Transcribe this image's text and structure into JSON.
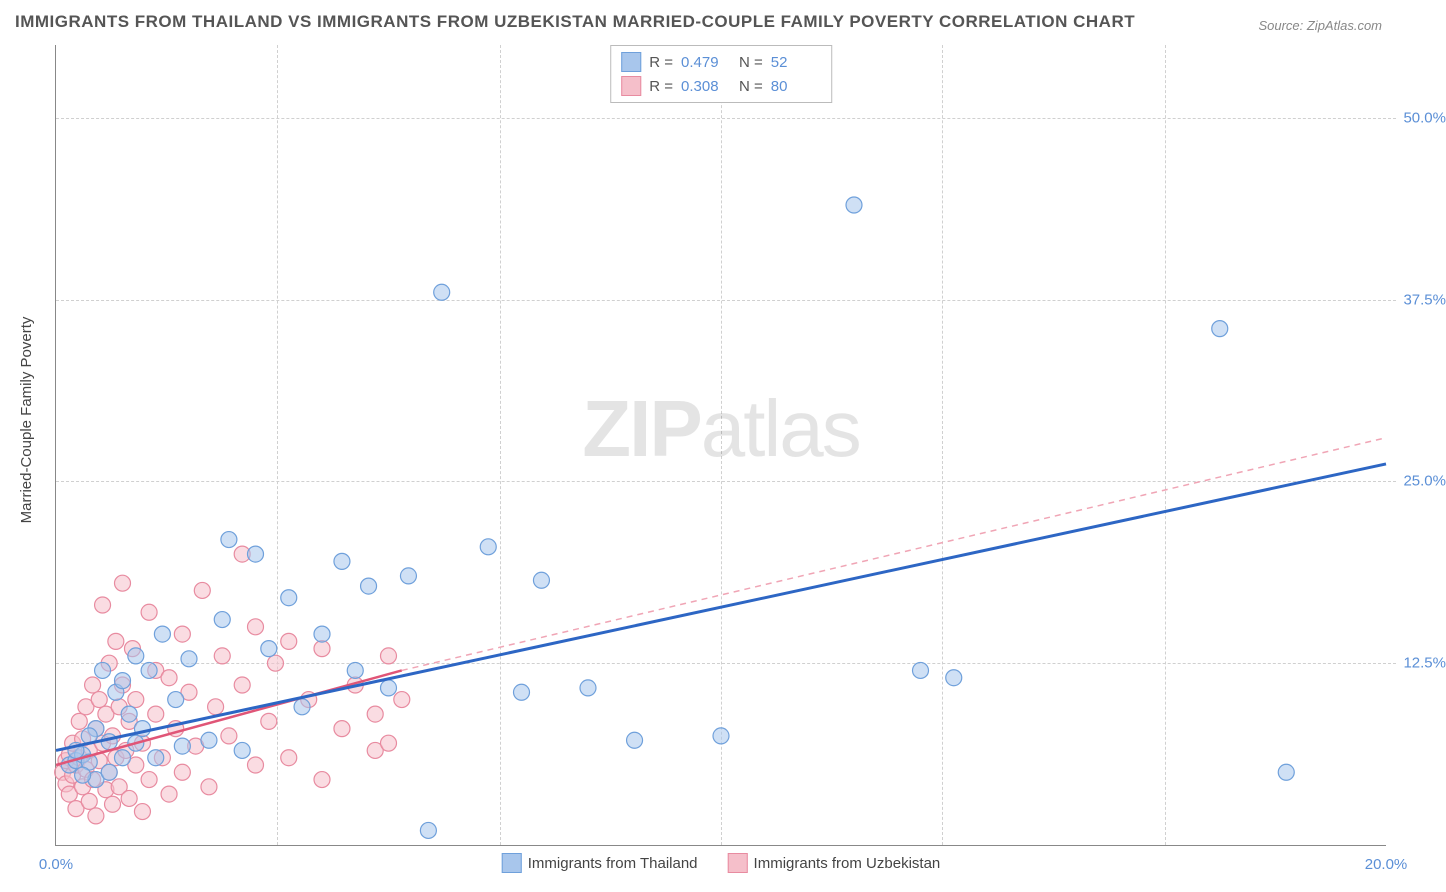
{
  "title": "IMMIGRANTS FROM THAILAND VS IMMIGRANTS FROM UZBEKISTAN MARRIED-COUPLE FAMILY POVERTY CORRELATION CHART",
  "source": "Source: ZipAtlas.com",
  "yaxis_label": "Married-Couple Family Poverty",
  "watermark_bold": "ZIP",
  "watermark_rest": "atlas",
  "chart": {
    "type": "scatter",
    "xlim": [
      0,
      20
    ],
    "ylim": [
      0,
      55
    ],
    "xunit": "%",
    "yunit": "%",
    "xticks": [
      0,
      20
    ],
    "xtick_labels": [
      "0.0%",
      "20.0%"
    ],
    "yticks": [
      12.5,
      25.0,
      37.5,
      50.0
    ],
    "ytick_labels": [
      "12.5%",
      "25.0%",
      "37.5%",
      "50.0%"
    ],
    "vgrid": [
      3.33,
      6.67,
      10.0,
      13.33,
      16.67
    ],
    "grid_color": "#d0d0d0",
    "background_color": "#ffffff",
    "series": [
      {
        "id": "thailand",
        "label": "Immigrants from Thailand",
        "color_fill": "#a8c6ec",
        "color_stroke": "#6fa0db",
        "r_value": "0.479",
        "n_value": "52",
        "marker_radius": 8,
        "trend": {
          "x1": 0,
          "y1": 6.5,
          "x2": 20,
          "y2": 26.2,
          "color": "#2d66c4",
          "width": 3,
          "dash": "none"
        },
        "points": [
          [
            0.2,
            5.5
          ],
          [
            0.3,
            5.8
          ],
          [
            0.4,
            6.2
          ],
          [
            0.5,
            5.7
          ],
          [
            0.6,
            8.0
          ],
          [
            0.6,
            4.5
          ],
          [
            0.7,
            12.0
          ],
          [
            0.8,
            7.1
          ],
          [
            0.9,
            10.5
          ],
          [
            1.0,
            6.0
          ],
          [
            1.0,
            11.3
          ],
          [
            1.1,
            9.0
          ],
          [
            1.2,
            13.0
          ],
          [
            1.3,
            8.0
          ],
          [
            1.4,
            12.0
          ],
          [
            1.5,
            6.0
          ],
          [
            1.6,
            14.5
          ],
          [
            1.8,
            10.0
          ],
          [
            1.9,
            6.8
          ],
          [
            2.0,
            12.8
          ],
          [
            2.3,
            7.2
          ],
          [
            2.5,
            15.5
          ],
          [
            2.6,
            21.0
          ],
          [
            2.8,
            6.5
          ],
          [
            3.0,
            20.0
          ],
          [
            3.2,
            13.5
          ],
          [
            3.5,
            17.0
          ],
          [
            3.7,
            9.5
          ],
          [
            4.0,
            14.5
          ],
          [
            4.3,
            19.5
          ],
          [
            4.5,
            12.0
          ],
          [
            4.7,
            17.8
          ],
          [
            5.0,
            10.8
          ],
          [
            5.3,
            18.5
          ],
          [
            5.6,
            1.0
          ],
          [
            5.8,
            38.0
          ],
          [
            6.5,
            20.5
          ],
          [
            7.0,
            10.5
          ],
          [
            7.3,
            18.2
          ],
          [
            8.0,
            10.8
          ],
          [
            8.7,
            7.2
          ],
          [
            10.0,
            7.5
          ],
          [
            12.0,
            44.0
          ],
          [
            13.0,
            12.0
          ],
          [
            13.5,
            11.5
          ],
          [
            17.5,
            35.5
          ],
          [
            18.5,
            5.0
          ],
          [
            0.3,
            6.5
          ],
          [
            0.4,
            4.8
          ],
          [
            0.5,
            7.5
          ],
          [
            0.8,
            5.0
          ],
          [
            1.2,
            7.0
          ]
        ]
      },
      {
        "id": "uzbekistan",
        "label": "Immigrants from Uzbekistan",
        "color_fill": "#f5bfca",
        "color_stroke": "#e88ba0",
        "r_value": "0.308",
        "n_value": "80",
        "marker_radius": 8,
        "trend_solid": {
          "x1": 0,
          "y1": 5.5,
          "x2": 5.2,
          "y2": 12.0,
          "color": "#e05577",
          "width": 2.5,
          "dash": "none"
        },
        "trend_dash": {
          "x1": 5.2,
          "y1": 12.0,
          "x2": 20,
          "y2": 28.0,
          "color": "#f0a5b5",
          "width": 1.5,
          "dash": "6,5"
        },
        "points": [
          [
            0.1,
            5.0
          ],
          [
            0.15,
            5.8
          ],
          [
            0.15,
            4.2
          ],
          [
            0.2,
            6.2
          ],
          [
            0.2,
            3.5
          ],
          [
            0.25,
            7.0
          ],
          [
            0.25,
            4.8
          ],
          [
            0.3,
            5.5
          ],
          [
            0.3,
            2.5
          ],
          [
            0.35,
            8.5
          ],
          [
            0.35,
            6.0
          ],
          [
            0.4,
            4.0
          ],
          [
            0.4,
            7.3
          ],
          [
            0.45,
            9.5
          ],
          [
            0.45,
            5.2
          ],
          [
            0.5,
            3.0
          ],
          [
            0.5,
            6.5
          ],
          [
            0.55,
            11.0
          ],
          [
            0.55,
            4.5
          ],
          [
            0.6,
            8.0
          ],
          [
            0.6,
            2.0
          ],
          [
            0.65,
            10.0
          ],
          [
            0.65,
            5.8
          ],
          [
            0.7,
            16.5
          ],
          [
            0.7,
            7.0
          ],
          [
            0.75,
            3.8
          ],
          [
            0.75,
            9.0
          ],
          [
            0.8,
            12.5
          ],
          [
            0.8,
            5.0
          ],
          [
            0.85,
            7.5
          ],
          [
            0.85,
            2.8
          ],
          [
            0.9,
            14.0
          ],
          [
            0.9,
            6.0
          ],
          [
            0.95,
            9.5
          ],
          [
            0.95,
            4.0
          ],
          [
            1.0,
            11.0
          ],
          [
            1.0,
            18.0
          ],
          [
            1.05,
            6.5
          ],
          [
            1.1,
            3.2
          ],
          [
            1.1,
            8.5
          ],
          [
            1.15,
            13.5
          ],
          [
            1.2,
            5.5
          ],
          [
            1.2,
            10.0
          ],
          [
            1.3,
            7.0
          ],
          [
            1.3,
            2.3
          ],
          [
            1.4,
            16.0
          ],
          [
            1.4,
            4.5
          ],
          [
            1.5,
            9.0
          ],
          [
            1.5,
            12.0
          ],
          [
            1.6,
            6.0
          ],
          [
            1.7,
            3.5
          ],
          [
            1.7,
            11.5
          ],
          [
            1.8,
            8.0
          ],
          [
            1.9,
            5.0
          ],
          [
            1.9,
            14.5
          ],
          [
            2.0,
            10.5
          ],
          [
            2.1,
            6.8
          ],
          [
            2.2,
            17.5
          ],
          [
            2.3,
            4.0
          ],
          [
            2.4,
            9.5
          ],
          [
            2.5,
            13.0
          ],
          [
            2.6,
            7.5
          ],
          [
            2.8,
            11.0
          ],
          [
            2.8,
            20.0
          ],
          [
            3.0,
            5.5
          ],
          [
            3.0,
            15.0
          ],
          [
            3.2,
            8.5
          ],
          [
            3.3,
            12.5
          ],
          [
            3.5,
            6.0
          ],
          [
            3.5,
            14.0
          ],
          [
            3.8,
            10.0
          ],
          [
            4.0,
            4.5
          ],
          [
            4.0,
            13.5
          ],
          [
            4.3,
            8.0
          ],
          [
            4.5,
            11.0
          ],
          [
            4.8,
            6.5
          ],
          [
            4.8,
            9.0
          ],
          [
            5.0,
            13.0
          ],
          [
            5.0,
            7.0
          ],
          [
            5.2,
            10.0
          ]
        ]
      }
    ]
  },
  "legend_top": {
    "r_label": "R =",
    "n_label": "N ="
  }
}
